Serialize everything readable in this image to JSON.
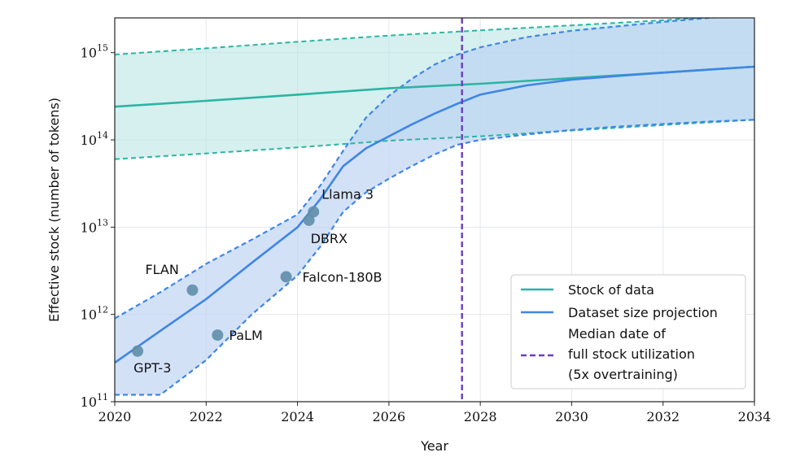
{
  "chart_data": {
    "type": "line",
    "xlabel": "Year",
    "ylabel": "Effective stock (number of tokens)",
    "xlim": [
      2020,
      2034
    ],
    "ylim": [
      100000000000.0,
      2500000000000000.0
    ],
    "yscale": "log",
    "grid": true,
    "x_ticks": [
      2020,
      2022,
      2024,
      2026,
      2028,
      2030,
      2032,
      2034
    ],
    "y_ticks": [
      {
        "value": 100000000000.0,
        "base": "10",
        "exp": "11"
      },
      {
        "value": 1000000000000.0,
        "base": "10",
        "exp": "12"
      },
      {
        "value": 10000000000000.0,
        "base": "10",
        "exp": "13"
      },
      {
        "value": 100000000000000.0,
        "base": "10",
        "exp": "14"
      },
      {
        "value": 1000000000000000.0,
        "base": "10",
        "exp": "15"
      }
    ],
    "colors": {
      "stock": "#2bb5a3",
      "projection": "#3f86e6",
      "median": "#6a3dc8",
      "points": "#5f8ea8",
      "stock_band": "#b9e6e3",
      "proj_band": "#bcd1f2"
    },
    "series": [
      {
        "name": "Stock of data",
        "x": [
          2020,
          2022,
          2024,
          2026,
          2028,
          2030,
          2032,
          2034
        ],
        "y": [
          240000000000000.0,
          280000000000000.0,
          330000000000000.0,
          390000000000000.0,
          440000000000000.0,
          510000000000000.0,
          590000000000000.0,
          690000000000000.0
        ],
        "lower": [
          60000000000000.0,
          70000000000000.0,
          82000000000000.0,
          98000000000000.0,
          110000000000000.0,
          128000000000000.0,
          148000000000000.0,
          170000000000000.0
        ],
        "upper": [
          950000000000000.0,
          1120000000000000.0,
          1330000000000000.0,
          1570000000000000.0,
          1800000000000000.0,
          2050000000000000.0,
          2350000000000000.0,
          2750000000000000.0
        ]
      },
      {
        "name": "Dataset size projection",
        "x": [
          2020,
          2021,
          2022,
          2023,
          2024,
          2024.5,
          2025,
          2025.5,
          2026,
          2026.5,
          2027,
          2027.5,
          2028,
          2029,
          2030,
          2031,
          2032,
          2033,
          2034
        ],
        "y": [
          280000000000.0,
          650000000000.0,
          1500000000000.0,
          3900000000000.0,
          10000000000000.0,
          21000000000000.0,
          50000000000000.0,
          80000000000000.0,
          110000000000000.0,
          150000000000000.0,
          200000000000000.0,
          260000000000000.0,
          330000000000000.0,
          420000000000000.0,
          490000000000000.0,
          540000000000000.0,
          590000000000000.0,
          640000000000000.0,
          690000000000000.0
        ],
        "lower": [
          120000000000.0,
          120000000000.0,
          300000000000.0,
          1000000000000.0,
          2800000000000.0,
          6000000000000.0,
          15000000000000.0,
          25000000000000.0,
          36000000000000.0,
          50000000000000.0,
          68000000000000.0,
          88000000000000.0,
          100000000000000.0,
          115000000000000.0,
          130000000000000.0,
          142000000000000.0,
          152000000000000.0,
          162000000000000.0,
          170000000000000.0
        ],
        "upper": [
          900000000000.0,
          1800000000000.0,
          3800000000000.0,
          7200000000000.0,
          14000000000000.0,
          30000000000000.0,
          75000000000000.0,
          180000000000000.0,
          320000000000000.0,
          500000000000000.0,
          730000000000000.0,
          950000000000000.0,
          1150000000000000.0,
          1500000000000000.0,
          1780000000000000.0,
          2000000000000000.0,
          2250000000000000.0,
          2500000000000000.0,
          2750000000000000.0
        ]
      }
    ],
    "median_date": {
      "x": 2027.6,
      "label_lines": [
        "Median date of",
        "full stock utilization",
        "(5x overtraining)"
      ]
    },
    "points": [
      {
        "name": "GPT-3",
        "x": 2020.5,
        "y": 380000000000.0
      },
      {
        "name": "FLAN",
        "x": 2021.7,
        "y": 1900000000000.0
      },
      {
        "name": "PaLM",
        "x": 2022.25,
        "y": 580000000000.0
      },
      {
        "name": "Falcon-180B",
        "x": 2023.75,
        "y": 2700000000000.0
      },
      {
        "name": "DBRX",
        "x": 2024.25,
        "y": 12000000000000.0
      },
      {
        "name": "Llama 3",
        "x": 2024.35,
        "y": 15000000000000.0
      }
    ],
    "legend": {
      "placement": "lower-right",
      "entries": [
        {
          "label_lines": [
            "Stock of data"
          ],
          "style": "solid",
          "color_key": "stock"
        },
        {
          "label_lines": [
            "Dataset size projection"
          ],
          "style": "solid",
          "color_key": "projection"
        },
        {
          "label_lines": [
            "Median date of",
            "full stock utilization",
            "(5x overtraining)"
          ],
          "style": "dashed",
          "color_key": "median"
        }
      ]
    }
  }
}
